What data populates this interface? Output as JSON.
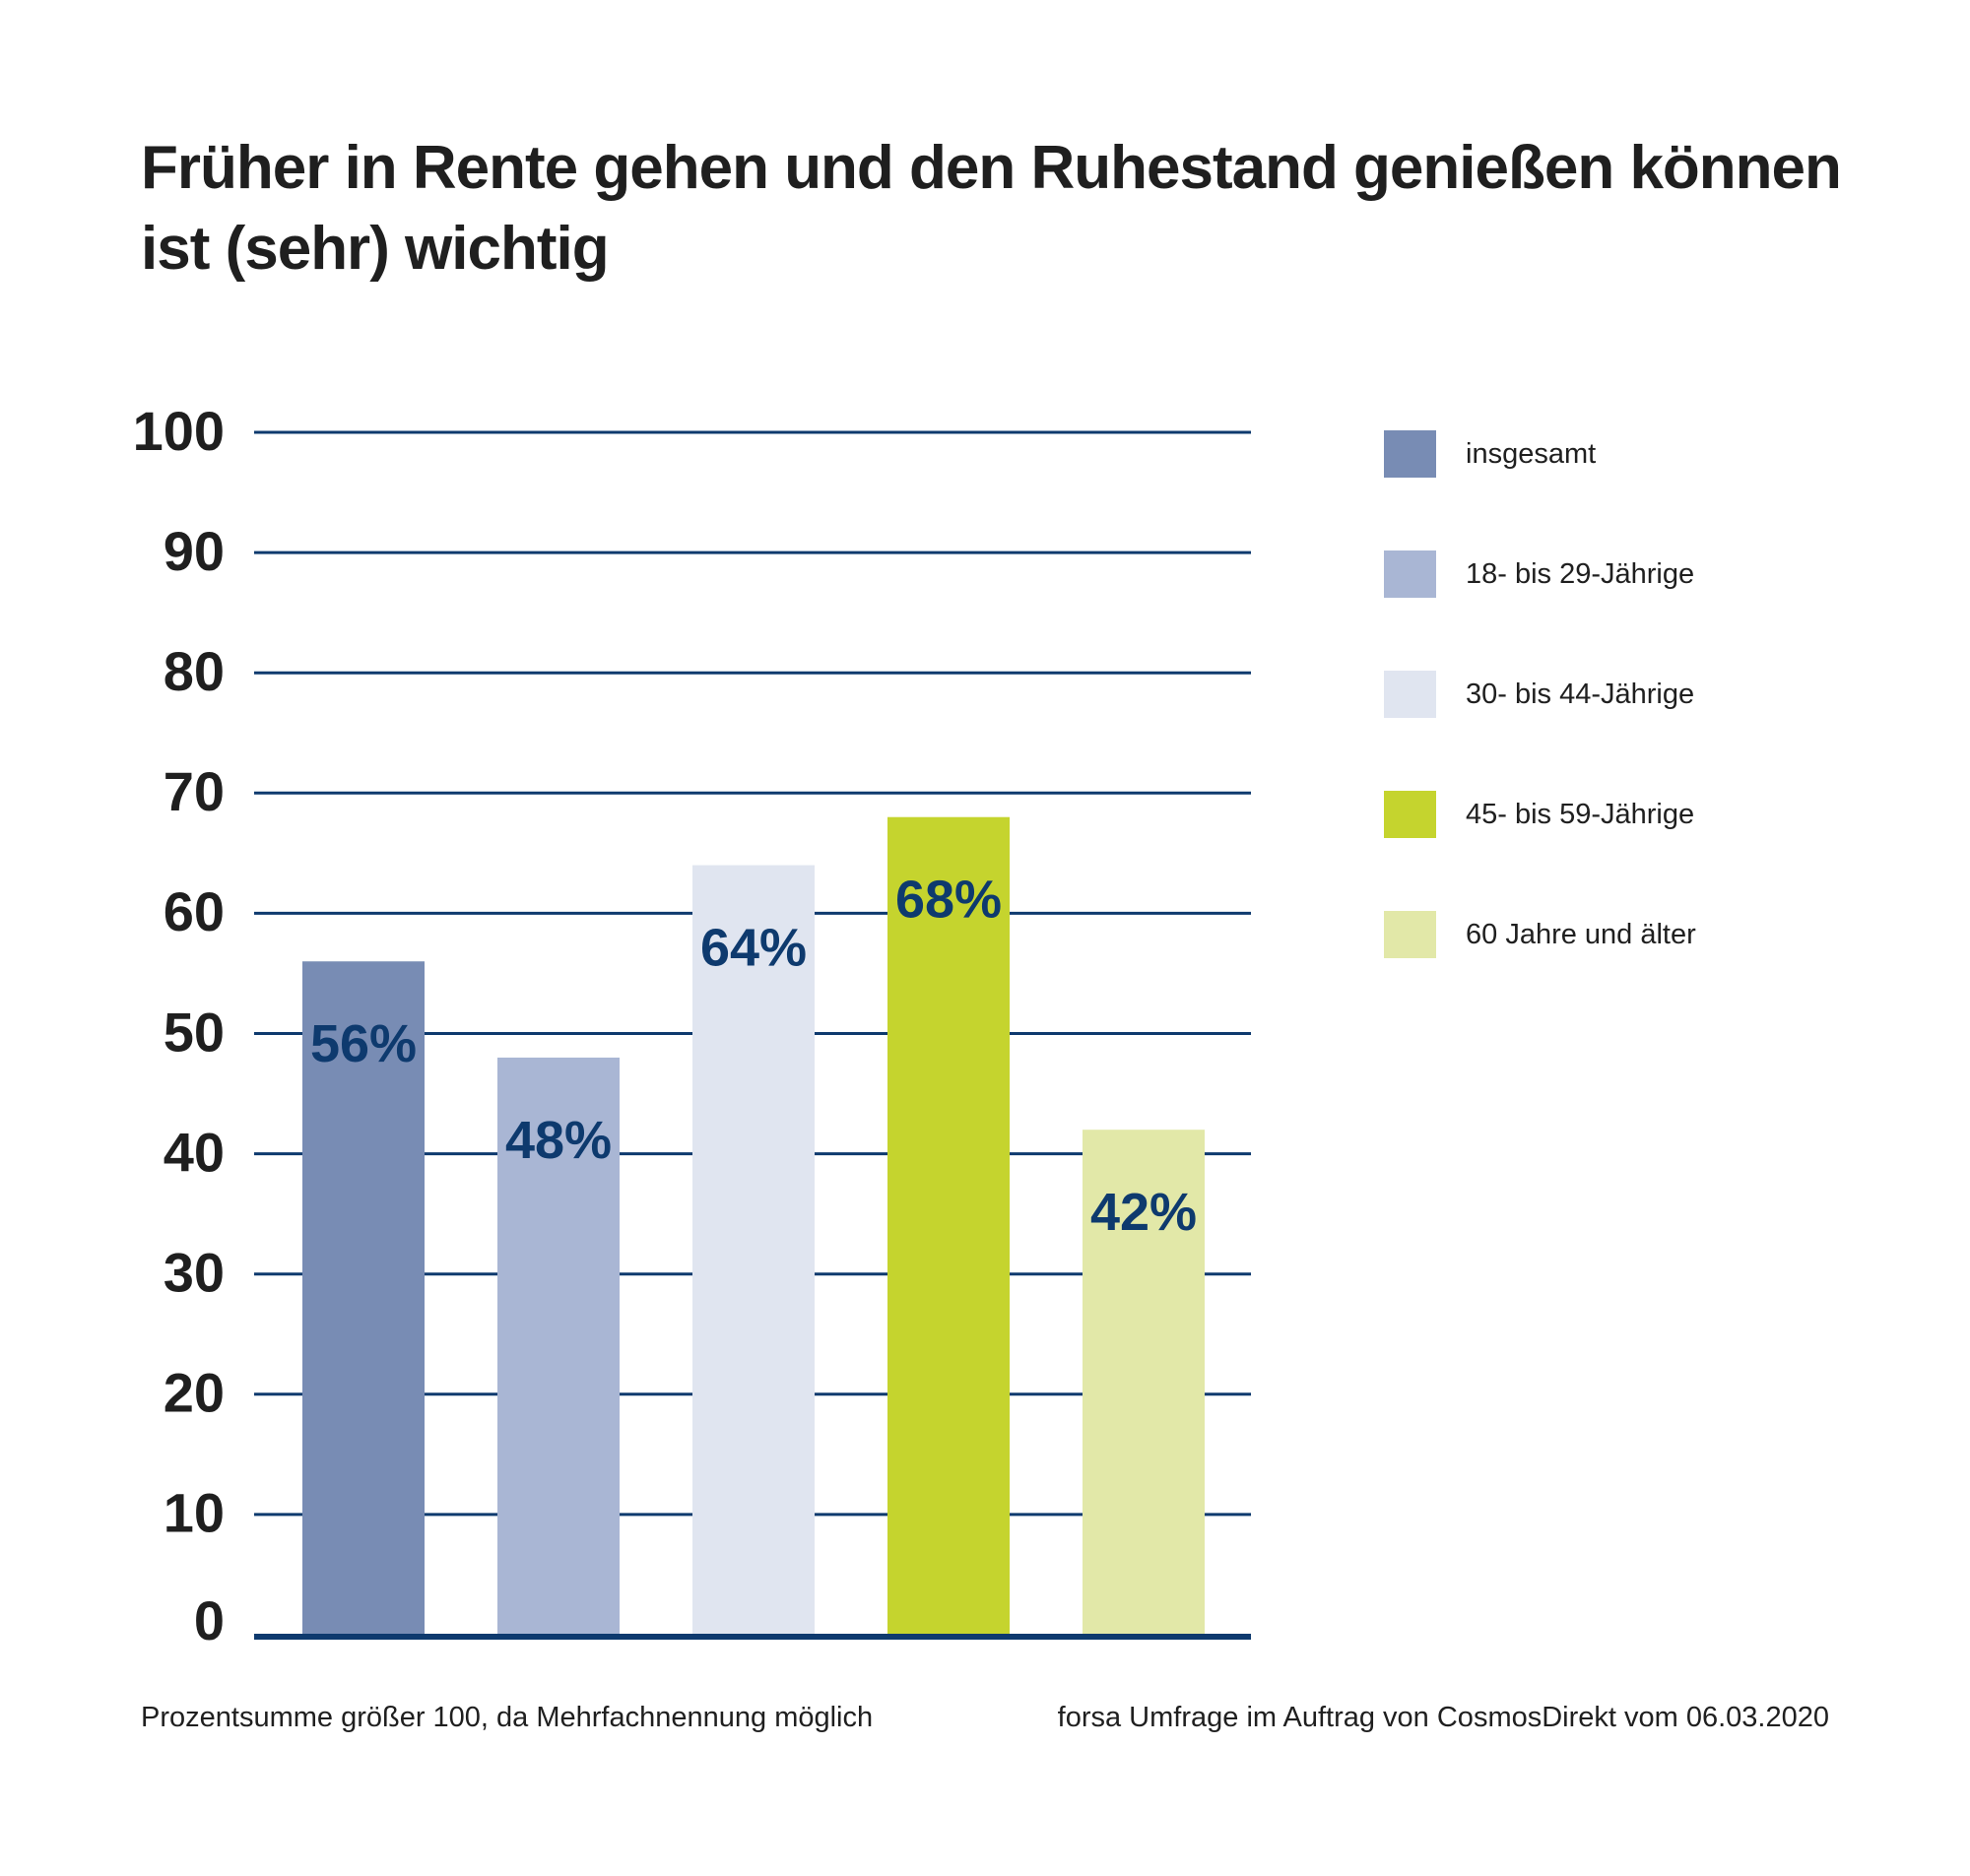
{
  "chart_data": {
    "type": "bar",
    "title_lines": [
      "Früher in Rente gehen und den Ruhestand genießen können",
      "ist (sehr) wichtig"
    ],
    "categories": [
      "insgesamt",
      "18- bis 29-Jährige",
      "30- bis 44-Jährige",
      "45- bis 59-Jährige",
      "60 Jahre und älter"
    ],
    "values": [
      56,
      48,
      64,
      68,
      42
    ],
    "value_labels": [
      "56%",
      "48%",
      "64%",
      "68%",
      "42%"
    ],
    "colors": [
      "#788cb4",
      "#a9b6d4",
      "#e0e5f0",
      "#c5d42e",
      "#e2e8a8"
    ],
    "yticks": [
      "0",
      "10",
      "20",
      "30",
      "40",
      "50",
      "60",
      "70",
      "80",
      "90",
      "100"
    ],
    "ylim": [
      0,
      100
    ],
    "grid": true,
    "legend_position": "right",
    "xlabel": "",
    "ylabel": ""
  },
  "footnotes": {
    "left": "Prozentsumme größer 100, da Mehrfachnennung möglich",
    "right": "forsa Umfrage im Auftrag von CosmosDirekt vom 06.03.2020"
  },
  "colors": {
    "gridline": "#0e3a6e",
    "axis": "#0e3a6e",
    "label": "#0e3a6e"
  }
}
